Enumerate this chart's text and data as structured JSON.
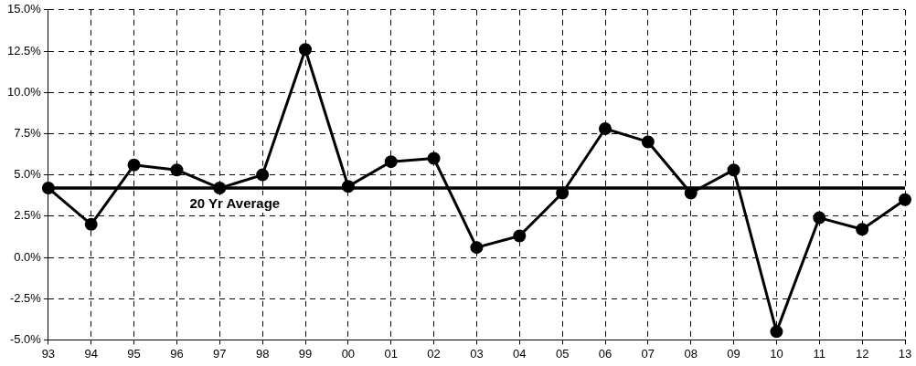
{
  "chart_data": {
    "type": "line",
    "categories": [
      "93",
      "94",
      "95",
      "96",
      "97",
      "98",
      "99",
      "00",
      "01",
      "02",
      "03",
      "04",
      "05",
      "06",
      "07",
      "08",
      "09",
      "10",
      "11",
      "12",
      "13"
    ],
    "series": [
      {
        "color": "#000000",
        "values": [
          4.2,
          2.0,
          5.6,
          5.3,
          4.2,
          5.0,
          12.6,
          4.3,
          5.8,
          6.0,
          0.6,
          1.3,
          3.9,
          7.8,
          7.0,
          3.9,
          5.3,
          -4.5,
          2.4,
          1.7,
          3.5
        ]
      }
    ],
    "ylim": [
      -5,
      15
    ],
    "yticks": [
      {
        "value": -5,
        "label": "-5.0%"
      },
      {
        "value": -2.5,
        "label": "-2.5%"
      },
      {
        "value": 0,
        "label": "0.0%"
      },
      {
        "value": 2.5,
        "label": "2.5%"
      },
      {
        "value": 5,
        "label": "5.0%"
      },
      {
        "value": 7.5,
        "label": "7.5%"
      },
      {
        "value": 10,
        "label": "10.0%"
      },
      {
        "value": 12.5,
        "label": "12.5%"
      },
      {
        "value": 15,
        "label": "15.0%"
      }
    ],
    "ref_lines": [
      {
        "axis": "y",
        "value": 4.2,
        "label": "20 Yr Average",
        "color": "#000000"
      }
    ],
    "grid": true,
    "legend": false,
    "marker": "circle",
    "line_style": "solid"
  }
}
